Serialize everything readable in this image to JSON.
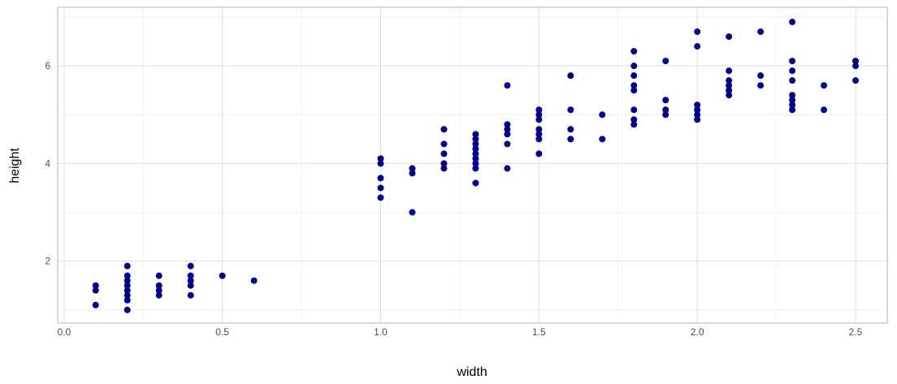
{
  "chart_data": {
    "type": "scatter",
    "title": "",
    "xlabel": "width",
    "ylabel": "height",
    "xlim": [
      -0.02,
      2.6
    ],
    "ylim": [
      0.73,
      7.2
    ],
    "x_ticks": [
      0.0,
      0.5,
      1.0,
      1.5,
      2.0,
      2.5
    ],
    "x_tick_labels": [
      "0.0",
      "0.5",
      "1.0",
      "1.5",
      "2.0",
      "2.5"
    ],
    "y_ticks": [
      2,
      4,
      6
    ],
    "y_tick_labels": [
      "2",
      "4",
      "6"
    ],
    "grid": true,
    "point_color": "#00008B",
    "points": [
      [
        0.1,
        1.5
      ],
      [
        0.1,
        1.4
      ],
      [
        0.1,
        1.1
      ],
      [
        0.2,
        1.9
      ],
      [
        0.2,
        1.7
      ],
      [
        0.2,
        1.6
      ],
      [
        0.2,
        1.5
      ],
      [
        0.2,
        1.4
      ],
      [
        0.2,
        1.3
      ],
      [
        0.2,
        1.2
      ],
      [
        0.2,
        1.0
      ],
      [
        0.3,
        1.7
      ],
      [
        0.3,
        1.5
      ],
      [
        0.3,
        1.4
      ],
      [
        0.3,
        1.3
      ],
      [
        0.4,
        1.9
      ],
      [
        0.4,
        1.7
      ],
      [
        0.4,
        1.6
      ],
      [
        0.4,
        1.5
      ],
      [
        0.4,
        1.3
      ],
      [
        0.5,
        1.7
      ],
      [
        0.6,
        1.6
      ],
      [
        1.0,
        4.1
      ],
      [
        1.0,
        4.0
      ],
      [
        1.0,
        3.7
      ],
      [
        1.0,
        3.5
      ],
      [
        1.0,
        3.3
      ],
      [
        1.1,
        3.9
      ],
      [
        1.1,
        3.8
      ],
      [
        1.1,
        3.0
      ],
      [
        1.2,
        4.7
      ],
      [
        1.2,
        4.4
      ],
      [
        1.2,
        4.2
      ],
      [
        1.2,
        4.0
      ],
      [
        1.2,
        3.9
      ],
      [
        1.3,
        4.6
      ],
      [
        1.3,
        4.5
      ],
      [
        1.3,
        4.4
      ],
      [
        1.3,
        4.3
      ],
      [
        1.3,
        4.2
      ],
      [
        1.3,
        4.1
      ],
      [
        1.3,
        4.0
      ],
      [
        1.3,
        3.9
      ],
      [
        1.3,
        3.6
      ],
      [
        1.4,
        5.6
      ],
      [
        1.4,
        4.8
      ],
      [
        1.4,
        4.7
      ],
      [
        1.4,
        4.6
      ],
      [
        1.4,
        4.4
      ],
      [
        1.4,
        3.9
      ],
      [
        1.5,
        5.1
      ],
      [
        1.5,
        5.0
      ],
      [
        1.5,
        4.9
      ],
      [
        1.5,
        4.7
      ],
      [
        1.5,
        4.6
      ],
      [
        1.5,
        4.5
      ],
      [
        1.5,
        4.2
      ],
      [
        1.6,
        5.8
      ],
      [
        1.6,
        5.1
      ],
      [
        1.6,
        4.7
      ],
      [
        1.6,
        4.5
      ],
      [
        1.7,
        5.0
      ],
      [
        1.7,
        4.5
      ],
      [
        1.8,
        6.3
      ],
      [
        1.8,
        6.0
      ],
      [
        1.8,
        5.8
      ],
      [
        1.8,
        5.6
      ],
      [
        1.8,
        5.5
      ],
      [
        1.8,
        5.1
      ],
      [
        1.8,
        4.9
      ],
      [
        1.8,
        4.8
      ],
      [
        1.9,
        6.1
      ],
      [
        1.9,
        5.3
      ],
      [
        1.9,
        5.1
      ],
      [
        1.9,
        5.0
      ],
      [
        2.0,
        6.7
      ],
      [
        2.0,
        6.4
      ],
      [
        2.0,
        5.2
      ],
      [
        2.0,
        5.1
      ],
      [
        2.0,
        5.0
      ],
      [
        2.0,
        4.9
      ],
      [
        2.1,
        6.6
      ],
      [
        2.1,
        5.9
      ],
      [
        2.1,
        5.7
      ],
      [
        2.1,
        5.6
      ],
      [
        2.1,
        5.5
      ],
      [
        2.1,
        5.4
      ],
      [
        2.2,
        6.7
      ],
      [
        2.2,
        5.8
      ],
      [
        2.2,
        5.6
      ],
      [
        2.3,
        6.9
      ],
      [
        2.3,
        6.1
      ],
      [
        2.3,
        5.9
      ],
      [
        2.3,
        5.7
      ],
      [
        2.3,
        5.4
      ],
      [
        2.3,
        5.3
      ],
      [
        2.3,
        5.2
      ],
      [
        2.3,
        5.1
      ],
      [
        2.4,
        5.6
      ],
      [
        2.4,
        5.1
      ],
      [
        2.5,
        6.1
      ],
      [
        2.5,
        6.0
      ],
      [
        2.5,
        5.7
      ]
    ]
  }
}
